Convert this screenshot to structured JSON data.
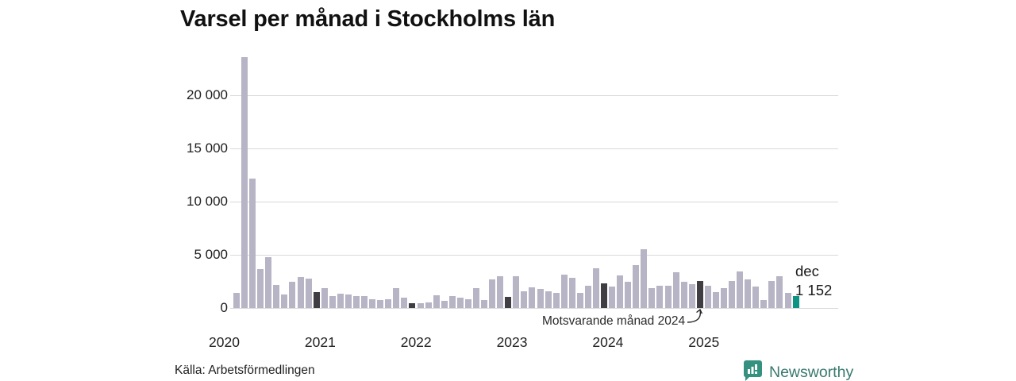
{
  "title": "Varsel per månad i Stockholms län",
  "source": "Källa: Arbetsförmedlingen",
  "branding": {
    "name": "Newsworthy"
  },
  "annotation": {
    "compare_label": "Motsvarande månad 2024",
    "current_month": "dec",
    "current_value": "1 152"
  },
  "colors": {
    "bar": "#b6b4c5",
    "compare_bar": "#403e42",
    "current_bar": "#0c9383",
    "grid": "#d9d9d9",
    "text": "#222222",
    "brand_badge": "#35917f",
    "brand_text": "#3a7a6e"
  },
  "chart_data": {
    "type": "bar",
    "title": "Varsel per månad i Stockholms län",
    "xlabel": "",
    "ylabel": "",
    "ylim": [
      0,
      24500
    ],
    "grid": true,
    "yticks": [
      {
        "value": 0,
        "label": "0"
      },
      {
        "value": 5000,
        "label": "5 000"
      },
      {
        "value": 10000,
        "label": "10 000"
      },
      {
        "value": 15000,
        "label": "15 000"
      },
      {
        "value": 20000,
        "label": "20 000"
      }
    ],
    "year_ticks": [
      "2020",
      "2021",
      "2022",
      "2023",
      "2024",
      "2025"
    ],
    "highlight_legend": {
      "compare": "December each year (dark bars), annotated 'Motsvarande månad 2024'",
      "current": "dec 2025 (teal bar), value 1 152"
    },
    "months": [
      {
        "label": "2020-02",
        "value": 1450,
        "kind": "normal"
      },
      {
        "label": "2020-03",
        "value": 23600,
        "kind": "normal"
      },
      {
        "label": "2020-04",
        "value": 12200,
        "kind": "normal"
      },
      {
        "label": "2020-05",
        "value": 3650,
        "kind": "normal"
      },
      {
        "label": "2020-06",
        "value": 4750,
        "kind": "normal"
      },
      {
        "label": "2020-07",
        "value": 2150,
        "kind": "normal"
      },
      {
        "label": "2020-08",
        "value": 1300,
        "kind": "normal"
      },
      {
        "label": "2020-09",
        "value": 2500,
        "kind": "normal"
      },
      {
        "label": "2020-10",
        "value": 2900,
        "kind": "normal"
      },
      {
        "label": "2020-11",
        "value": 2750,
        "kind": "normal"
      },
      {
        "label": "2020-12",
        "value": 1500,
        "kind": "compare"
      },
      {
        "label": "2021-01",
        "value": 1850,
        "kind": "normal"
      },
      {
        "label": "2021-02",
        "value": 1100,
        "kind": "normal"
      },
      {
        "label": "2021-03",
        "value": 1350,
        "kind": "normal"
      },
      {
        "label": "2021-04",
        "value": 1250,
        "kind": "normal"
      },
      {
        "label": "2021-05",
        "value": 1100,
        "kind": "normal"
      },
      {
        "label": "2021-06",
        "value": 1150,
        "kind": "normal"
      },
      {
        "label": "2021-07",
        "value": 820,
        "kind": "normal"
      },
      {
        "label": "2021-08",
        "value": 750,
        "kind": "normal"
      },
      {
        "label": "2021-09",
        "value": 820,
        "kind": "normal"
      },
      {
        "label": "2021-10",
        "value": 1870,
        "kind": "normal"
      },
      {
        "label": "2021-11",
        "value": 1000,
        "kind": "normal"
      },
      {
        "label": "2021-12",
        "value": 450,
        "kind": "compare"
      },
      {
        "label": "2022-01",
        "value": 420,
        "kind": "normal"
      },
      {
        "label": "2022-02",
        "value": 520,
        "kind": "normal"
      },
      {
        "label": "2022-03",
        "value": 1200,
        "kind": "normal"
      },
      {
        "label": "2022-04",
        "value": 700,
        "kind": "normal"
      },
      {
        "label": "2022-05",
        "value": 1150,
        "kind": "normal"
      },
      {
        "label": "2022-06",
        "value": 1000,
        "kind": "normal"
      },
      {
        "label": "2022-07",
        "value": 850,
        "kind": "normal"
      },
      {
        "label": "2022-08",
        "value": 1870,
        "kind": "normal"
      },
      {
        "label": "2022-09",
        "value": 750,
        "kind": "normal"
      },
      {
        "label": "2022-10",
        "value": 2650,
        "kind": "normal"
      },
      {
        "label": "2022-11",
        "value": 3000,
        "kind": "normal"
      },
      {
        "label": "2022-12",
        "value": 1070,
        "kind": "compare"
      },
      {
        "label": "2023-01",
        "value": 3000,
        "kind": "normal"
      },
      {
        "label": "2023-02",
        "value": 1600,
        "kind": "normal"
      },
      {
        "label": "2023-03",
        "value": 1950,
        "kind": "normal"
      },
      {
        "label": "2023-04",
        "value": 1800,
        "kind": "normal"
      },
      {
        "label": "2023-05",
        "value": 1550,
        "kind": "normal"
      },
      {
        "label": "2023-06",
        "value": 1400,
        "kind": "normal"
      },
      {
        "label": "2023-07",
        "value": 3150,
        "kind": "normal"
      },
      {
        "label": "2023-08",
        "value": 2800,
        "kind": "normal"
      },
      {
        "label": "2023-09",
        "value": 1400,
        "kind": "normal"
      },
      {
        "label": "2023-10",
        "value": 2100,
        "kind": "normal"
      },
      {
        "label": "2023-11",
        "value": 3700,
        "kind": "normal"
      },
      {
        "label": "2023-12",
        "value": 2300,
        "kind": "compare"
      },
      {
        "label": "2024-01",
        "value": 2050,
        "kind": "normal"
      },
      {
        "label": "2024-02",
        "value": 3050,
        "kind": "normal"
      },
      {
        "label": "2024-03",
        "value": 2450,
        "kind": "normal"
      },
      {
        "label": "2024-04",
        "value": 4050,
        "kind": "normal"
      },
      {
        "label": "2024-05",
        "value": 5550,
        "kind": "normal"
      },
      {
        "label": "2024-06",
        "value": 1900,
        "kind": "normal"
      },
      {
        "label": "2024-07",
        "value": 2100,
        "kind": "normal"
      },
      {
        "label": "2024-08",
        "value": 2100,
        "kind": "normal"
      },
      {
        "label": "2024-09",
        "value": 3350,
        "kind": "normal"
      },
      {
        "label": "2024-10",
        "value": 2500,
        "kind": "normal"
      },
      {
        "label": "2024-11",
        "value": 2250,
        "kind": "normal"
      },
      {
        "label": "2024-12",
        "value": 2550,
        "kind": "compare"
      },
      {
        "label": "2025-01",
        "value": 2100,
        "kind": "normal"
      },
      {
        "label": "2025-02",
        "value": 1500,
        "kind": "normal"
      },
      {
        "label": "2025-03",
        "value": 1900,
        "kind": "normal"
      },
      {
        "label": "2025-04",
        "value": 2550,
        "kind": "normal"
      },
      {
        "label": "2025-05",
        "value": 3450,
        "kind": "normal"
      },
      {
        "label": "2025-06",
        "value": 2700,
        "kind": "normal"
      },
      {
        "label": "2025-07",
        "value": 2000,
        "kind": "normal"
      },
      {
        "label": "2025-08",
        "value": 750,
        "kind": "normal"
      },
      {
        "label": "2025-09",
        "value": 2550,
        "kind": "normal"
      },
      {
        "label": "2025-10",
        "value": 3000,
        "kind": "normal"
      },
      {
        "label": "2025-11",
        "value": 1400,
        "kind": "normal"
      },
      {
        "label": "2025-12",
        "value": 1152,
        "kind": "current"
      }
    ]
  }
}
